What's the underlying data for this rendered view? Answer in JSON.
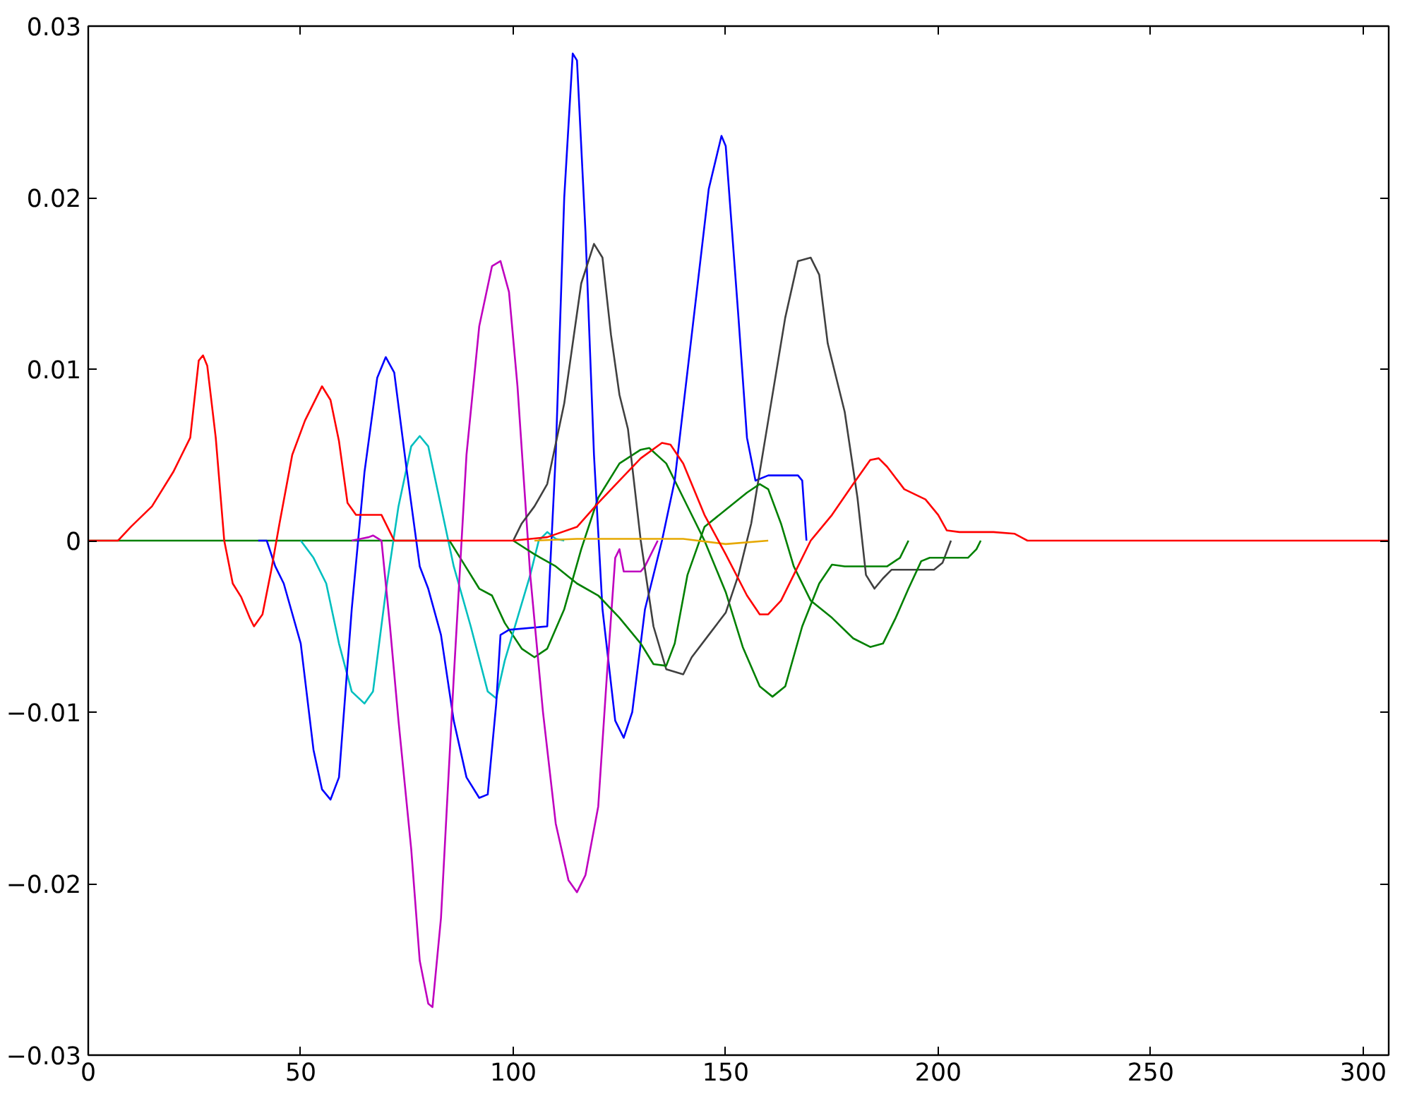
{
  "chart_data": {
    "type": "line",
    "xlim": [
      0,
      306
    ],
    "ylim": [
      -0.03,
      0.03
    ],
    "xticks": [
      0,
      50,
      100,
      150,
      200,
      250,
      300
    ],
    "yticks": [
      {
        "value": -0.03,
        "label": "−0.03"
      },
      {
        "value": -0.02,
        "label": "−0.02"
      },
      {
        "value": -0.01,
        "label": "−0.01"
      },
      0,
      0.01,
      0.02,
      0.03
    ],
    "grid": false,
    "marker": "none",
    "line_style": "solid",
    "series": [
      {
        "color": "#008000",
        "x": [
          0,
          85,
          88,
          92,
          95,
          98,
          102,
          105,
          108,
          112,
          116,
          120,
          125,
          130,
          132,
          136,
          140,
          145,
          150,
          154,
          158,
          161,
          164,
          168,
          172,
          175,
          178,
          188,
          191,
          193
        ],
        "values": [
          0,
          0,
          -0.0012,
          -0.0028,
          -0.0032,
          -0.0048,
          -0.0063,
          -0.0068,
          -0.0063,
          -0.004,
          -0.0005,
          0.0025,
          0.0045,
          0.0053,
          0.0054,
          0.0045,
          0.0025,
          0,
          -0.003,
          -0.0062,
          -0.0085,
          -0.0091,
          -0.0085,
          -0.005,
          -0.0025,
          -0.0014,
          -0.0015,
          -0.0015,
          -0.001,
          0
        ]
      },
      {
        "color": "#00bfbf",
        "x": [
          50,
          53,
          56,
          59,
          62,
          65,
          67,
          70,
          73,
          76,
          78,
          80,
          83,
          86,
          90,
          94,
          96,
          98,
          101,
          104,
          106,
          108,
          110,
          112
        ],
        "values": [
          0,
          -0.001,
          -0.0025,
          -0.006,
          -0.0088,
          -0.0095,
          -0.0088,
          -0.003,
          0.002,
          0.0055,
          0.0061,
          0.0055,
          0.002,
          -0.0015,
          -0.005,
          -0.0088,
          -0.0092,
          -0.007,
          -0.0045,
          -0.002,
          0,
          0.0005,
          0.0001,
          0
        ]
      },
      {
        "color": "#0000ff",
        "x": [
          40,
          42,
          44,
          46,
          50,
          53,
          55,
          57,
          59,
          62,
          65,
          68,
          70,
          72,
          75,
          78,
          80,
          83,
          86,
          89,
          92,
          94,
          96,
          97,
          99,
          108,
          110,
          112,
          114,
          115,
          117,
          119,
          121,
          124,
          126,
          128,
          131,
          135,
          138,
          142,
          146,
          149,
          150,
          153,
          155,
          157,
          160,
          167,
          168,
          169
        ],
        "values": [
          0,
          0,
          -0.0015,
          -0.0025,
          -0.006,
          -0.0122,
          -0.0145,
          -0.0151,
          -0.0138,
          -0.004,
          0.004,
          0.0095,
          0.0107,
          0.0098,
          0.004,
          -0.0015,
          -0.0028,
          -0.0055,
          -0.0105,
          -0.0138,
          -0.015,
          -0.0148,
          -0.0095,
          -0.0055,
          -0.0052,
          -0.005,
          0.005,
          0.02,
          0.0284,
          0.028,
          0.018,
          0.005,
          -0.004,
          -0.0105,
          -0.0115,
          -0.01,
          -0.004,
          0,
          0.0035,
          0.012,
          0.0205,
          0.0236,
          0.023,
          0.013,
          0.006,
          0.0035,
          0.0038,
          0.0038,
          0.0035,
          0
        ]
      },
      {
        "color": "#bf00bf",
        "x": [
          62,
          66,
          67,
          69,
          71,
          73,
          76,
          78,
          80,
          81,
          83,
          86,
          89,
          92,
          95,
          97,
          99,
          101,
          104,
          107,
          110,
          113,
          115,
          117,
          120,
          122,
          124,
          125,
          126,
          130,
          131,
          134
        ],
        "values": [
          0,
          0.0002,
          0.0003,
          0,
          -0.005,
          -0.0105,
          -0.018,
          -0.0245,
          -0.027,
          -0.0272,
          -0.022,
          -0.008,
          0.005,
          0.0125,
          0.016,
          0.0163,
          0.0145,
          0.009,
          -0.002,
          -0.01,
          -0.0165,
          -0.0198,
          -0.0205,
          -0.0195,
          -0.0155,
          -0.008,
          -0.001,
          -0.0005,
          -0.0018,
          -0.0018,
          -0.0015,
          0
        ]
      },
      {
        "color": "#404040",
        "x": [
          100,
          102,
          105,
          108,
          112,
          116,
          119,
          121,
          123,
          125,
          127,
          130,
          133,
          136,
          140,
          142,
          146,
          150,
          153,
          156,
          160,
          164,
          167,
          170,
          172,
          174,
          178,
          181,
          183,
          185,
          187,
          189,
          199,
          201,
          203
        ],
        "values": [
          0,
          0.001,
          0.002,
          0.0033,
          0.008,
          0.015,
          0.0173,
          0.0165,
          0.012,
          0.0085,
          0.0065,
          0,
          -0.005,
          -0.0075,
          -0.0078,
          -0.0068,
          -0.0055,
          -0.0042,
          -0.002,
          0.001,
          0.007,
          0.013,
          0.0163,
          0.0165,
          0.0155,
          0.0115,
          0.0075,
          0.0025,
          -0.002,
          -0.0028,
          -0.0022,
          -0.0017,
          -0.0017,
          -0.0013,
          0
        ]
      },
      {
        "color": "#008000",
        "x": [
          100,
          105,
          110,
          115,
          120,
          125,
          130,
          133,
          136,
          138,
          141,
          145,
          150,
          155,
          158,
          160,
          163,
          166,
          170,
          175,
          180,
          184,
          187,
          190,
          193,
          196,
          198,
          207,
          209,
          210
        ],
        "values": [
          0,
          -0.0008,
          -0.0015,
          -0.0025,
          -0.0032,
          -0.0045,
          -0.006,
          -0.0072,
          -0.0073,
          -0.006,
          -0.002,
          0.0008,
          0.0018,
          0.0028,
          0.0033,
          0.003,
          0.001,
          -0.0015,
          -0.0035,
          -0.0045,
          -0.0057,
          -0.0062,
          -0.006,
          -0.0045,
          -0.0028,
          -0.0012,
          -0.001,
          -0.001,
          -0.0005,
          0
        ]
      },
      {
        "color": "#e6a800",
        "x": [
          105,
          115,
          140,
          150,
          160
        ],
        "values": [
          0,
          0.0001,
          0.0001,
          -0.0002,
          0
        ]
      },
      {
        "color": "#ff0000",
        "x": [
          0,
          7,
          10,
          15,
          20,
          24,
          26,
          27,
          28,
          30,
          32,
          34,
          36,
          38,
          39,
          41,
          43,
          45,
          48,
          51,
          55,
          57,
          59,
          61,
          63,
          69,
          71,
          72,
          100,
          108,
          115,
          120,
          125,
          130,
          135,
          137,
          140,
          145,
          150,
          155,
          158,
          160,
          163,
          166,
          170,
          175,
          180,
          184,
          186,
          188,
          192,
          197,
          200,
          202,
          205,
          213,
          218,
          221,
          306
        ],
        "values": [
          0,
          0,
          0.0008,
          0.002,
          0.004,
          0.006,
          0.0105,
          0.0108,
          0.0102,
          0.006,
          0,
          -0.0025,
          -0.0033,
          -0.0045,
          -0.005,
          -0.0043,
          -0.0018,
          0.001,
          0.005,
          0.007,
          0.009,
          0.0082,
          0.0058,
          0.0022,
          0.0015,
          0.0015,
          0.0005,
          0,
          0,
          0.0002,
          0.0008,
          0.0022,
          0.0035,
          0.0048,
          0.0057,
          0.0056,
          0.0045,
          0.0015,
          -0.0008,
          -0.0032,
          -0.0043,
          -0.0043,
          -0.0035,
          -0.002,
          0,
          0.0015,
          0.0033,
          0.0047,
          0.0048,
          0.0043,
          0.003,
          0.0024,
          0.0015,
          0.0006,
          0.0005,
          0.0005,
          0.0004,
          0,
          0
        ]
      }
    ]
  }
}
